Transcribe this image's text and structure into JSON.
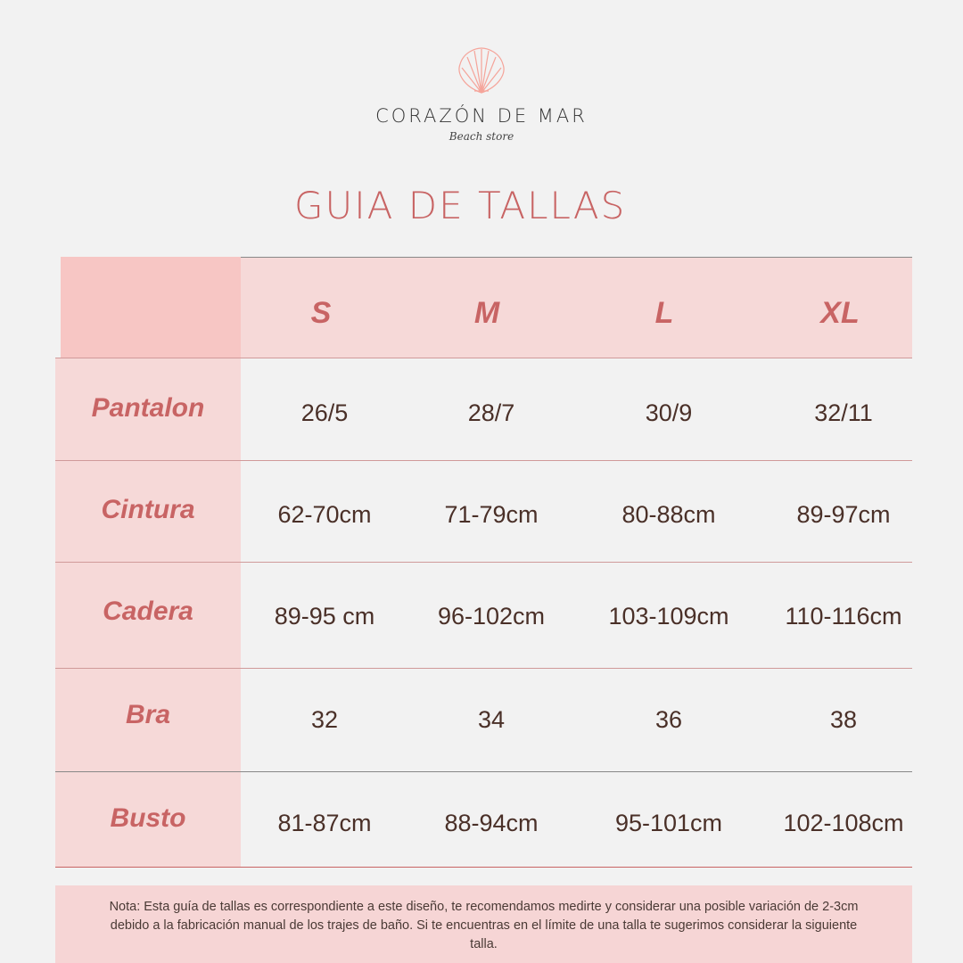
{
  "brand": {
    "name": "CORAZÓN DE MAR",
    "tagline": "Beach store",
    "logo_icon": "seashell-icon"
  },
  "title": "GUIA DE TALLAS",
  "table": {
    "sizes": [
      "S",
      "M",
      "L",
      "XL"
    ],
    "rows": [
      {
        "label": "Pantalon",
        "values": [
          "26/5",
          "28/7",
          "30/9",
          "32/11"
        ]
      },
      {
        "label": "Cintura",
        "values": [
          "62-70cm",
          "71-79cm",
          "80-88cm",
          "89-97cm"
        ]
      },
      {
        "label": "Cadera",
        "values": [
          "89-95 cm",
          "96-102cm",
          "103-109cm",
          "110-116cm"
        ]
      },
      {
        "label": "Bra",
        "values": [
          "32",
          "34",
          "36",
          "38"
        ]
      },
      {
        "label": "Busto",
        "values": [
          "81-87cm",
          "88-94cm",
          "95-101cm",
          "102-108cm"
        ]
      }
    ]
  },
  "note": "Nota: Esta guía de tallas es correspondiente a este diseño, te recomendamos medirte y considerar una posible variación de 2-3cm debido a la fabricación manual de los trajes de baño. Si te encuentras en el límite de una talla te sugerimos considerar la siguiente talla.",
  "colors": {
    "accent": "#c86464",
    "header_bg": "#f6d9d8",
    "corner_bg": "#f7c6c4",
    "text": "#4a3028",
    "background": "#f2f2f2"
  }
}
